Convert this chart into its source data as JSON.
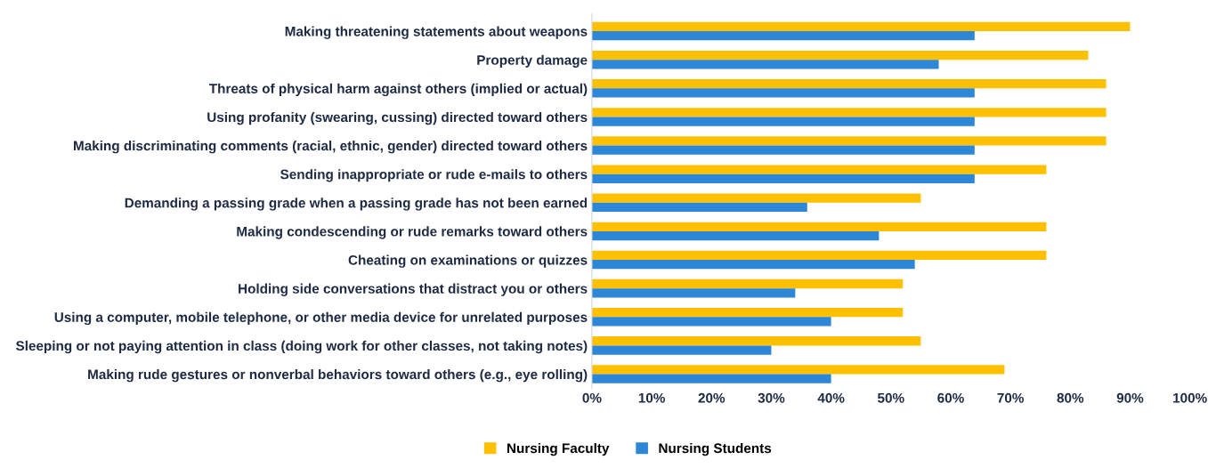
{
  "chart_data": {
    "type": "bar",
    "orientation": "horizontal",
    "categories": [
      "Making threatening statements about weapons",
      "Property damage",
      "Threats of physical harm against others (implied or actual)",
      "Using profanity (swearing, cussing) directed toward others",
      "Making discriminating comments (racial, ethnic, gender) directed toward others",
      "Sending inappropriate or rude e-mails to others",
      "Demanding a passing grade when a passing grade has not been earned",
      "Making condescending or rude remarks toward others",
      "Cheating on examinations or quizzes",
      "Holding side conversations that distract you or others",
      "Using a computer, mobile telephone, or other media device for unrelated purposes",
      "Sleeping or not paying attention in class (doing work for other classes, not taking notes)",
      "Making rude gestures or nonverbal behaviors toward others (e.g., eye rolling)"
    ],
    "series": [
      {
        "name": "Nursing Faculty",
        "color": "#ffc000",
        "values": [
          90,
          83,
          86,
          86,
          86,
          76,
          55,
          76,
          76,
          52,
          52,
          55,
          69
        ]
      },
      {
        "name": "Nursing Students",
        "color": "#2e86d6",
        "values": [
          64,
          58,
          64,
          64,
          64,
          64,
          36,
          48,
          54,
          34,
          40,
          30,
          40
        ]
      }
    ],
    "xlim": [
      0,
      100
    ],
    "xticks": [
      {
        "value": 0,
        "label": "0%"
      },
      {
        "value": 10,
        "label": "10%"
      },
      {
        "value": 20,
        "label": "20%"
      },
      {
        "value": 30,
        "label": "30%"
      },
      {
        "value": 40,
        "label": "40%"
      },
      {
        "value": 50,
        "label": "50%"
      },
      {
        "value": 60,
        "label": "60%"
      },
      {
        "value": 70,
        "label": "70%"
      },
      {
        "value": 80,
        "label": "80%"
      },
      {
        "value": 90,
        "label": "90%"
      },
      {
        "value": 100,
        "label": "100%"
      }
    ],
    "grid": false,
    "legend": "bottom left"
  }
}
